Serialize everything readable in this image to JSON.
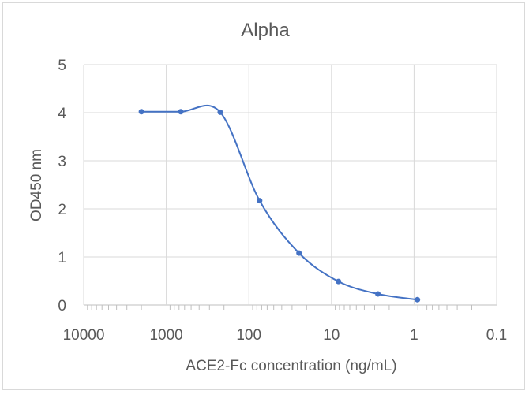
{
  "chart_data": {
    "type": "line",
    "title": "Alpha",
    "xlabel": "ACE2-Fc concentration (ng/mL)",
    "ylabel": "OD450 nm",
    "x_scale": "log",
    "x_reversed": true,
    "xlim": [
      10000,
      0.1
    ],
    "ylim": [
      0,
      5
    ],
    "x_ticks": [
      "10000",
      "1000",
      "100",
      "10",
      "1",
      "0.1"
    ],
    "y_ticks": [
      "0",
      "1",
      "2",
      "3",
      "4",
      "5"
    ],
    "grid": true,
    "smoothed": true,
    "color": "#4472C4",
    "series": [
      {
        "x": [
          2000,
          666.7,
          222.2,
          74.1,
          24.7,
          8.23,
          2.74,
          0.91
        ],
        "y": [
          4.02,
          4.02,
          4.01,
          2.17,
          1.08,
          0.49,
          0.23,
          0.11
        ]
      }
    ]
  }
}
